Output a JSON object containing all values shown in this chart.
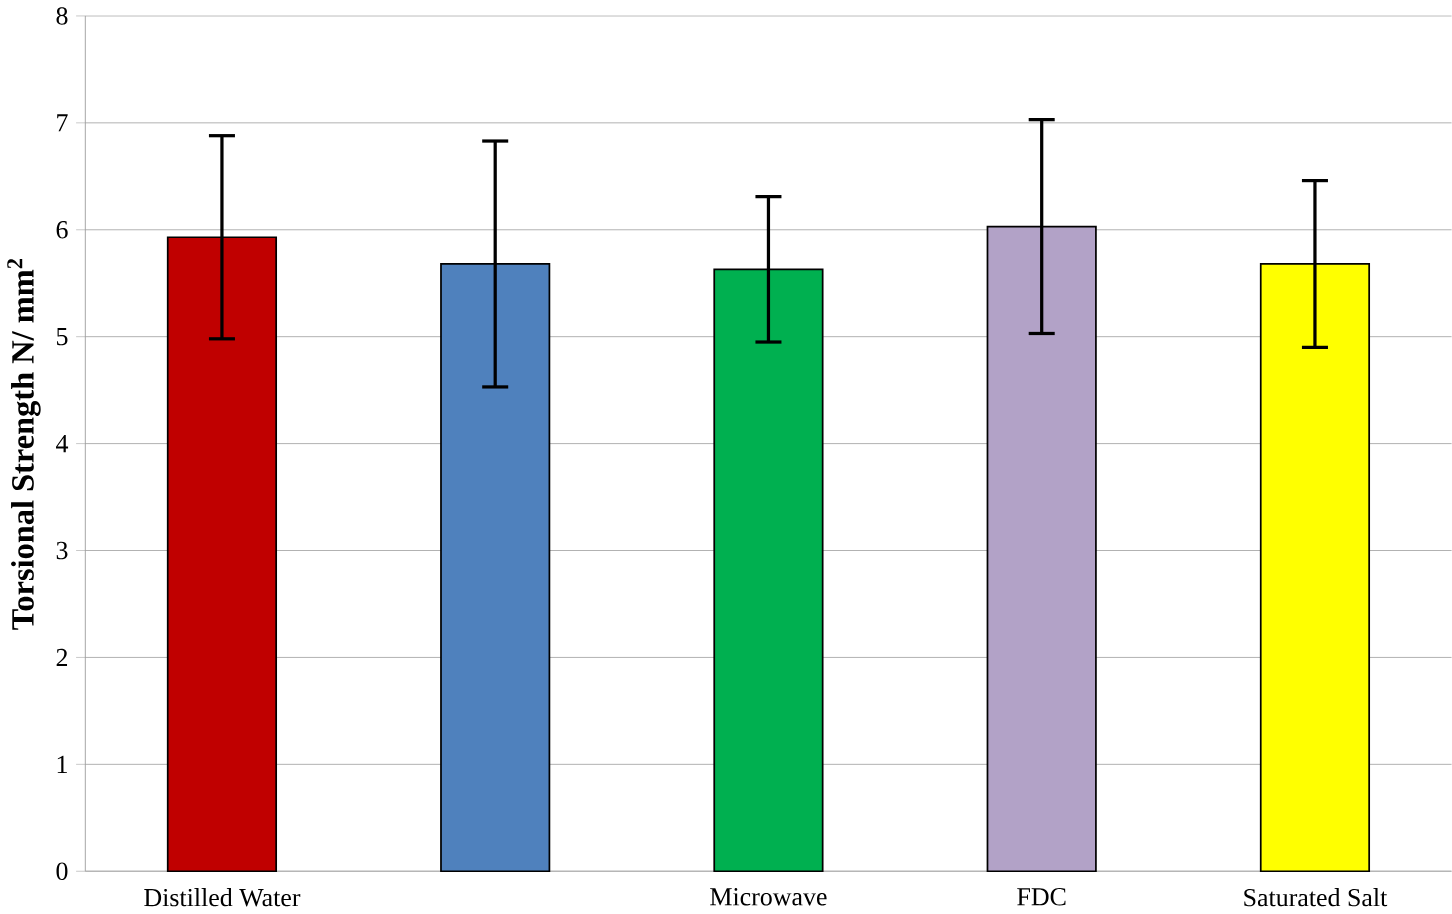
{
  "chart_data": {
    "type": "bar",
    "ylabel": "Torsional Strength N/ mm$^{2}$",
    "categories": [
      "Distilled Water",
      null,
      "Microwave",
      "FDC",
      "Saturated Salt"
    ],
    "values": [
      5.93,
      5.68,
      5.63,
      6.03,
      5.68
    ],
    "errors": [
      0.95,
      1.15,
      0.68,
      1.0,
      0.78
    ],
    "colors": [
      "#c00000",
      "#4f81bd",
      "#00b050",
      "#b2a2c7",
      "#ffff00"
    ],
    "ylim": [
      0,
      8
    ],
    "yticks": [
      0,
      1,
      2,
      3,
      4,
      5,
      6,
      7,
      8
    ],
    "grid": "y"
  }
}
